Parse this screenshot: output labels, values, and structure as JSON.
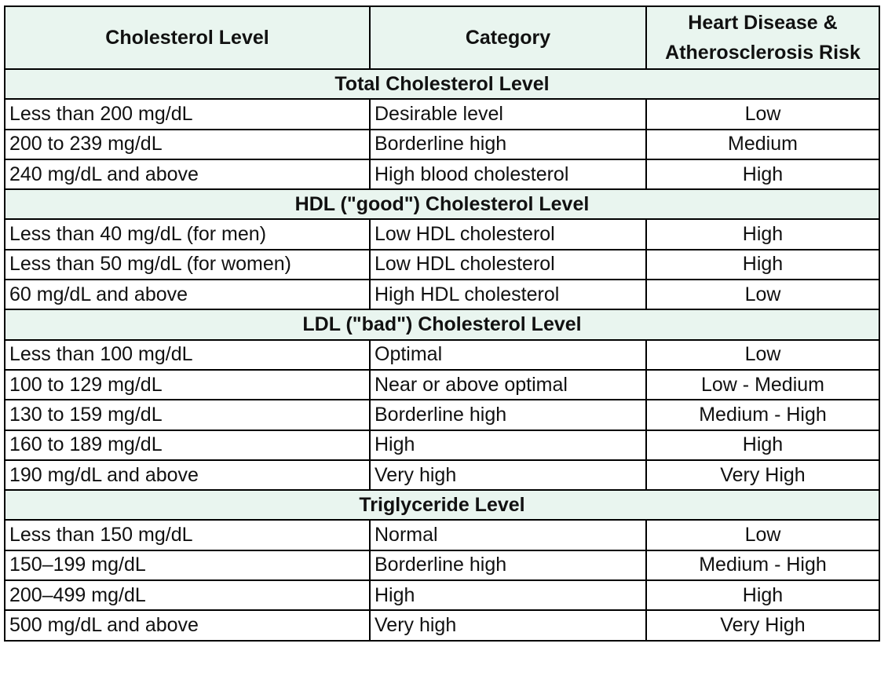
{
  "header": [
    "Cholesterol Level",
    "Category",
    "Heart Disease & Atherosclerosis Risk"
  ],
  "sections": [
    {
      "title": "Total Cholesterol Level",
      "rows": [
        [
          "Less than 200 mg/dL",
          "Desirable level",
          "Low"
        ],
        [
          "200 to 239 mg/dL",
          "Borderline high",
          "Medium"
        ],
        [
          "240 mg/dL and above",
          "High blood cholesterol",
          "High"
        ]
      ]
    },
    {
      "title": "HDL (\"good\") Cholesterol Level",
      "rows": [
        [
          "Less than 40 mg/dL (for men)",
          "Low HDL cholesterol",
          "High"
        ],
        [
          "Less than 50 mg/dL (for women)",
          "Low HDL cholesterol",
          "High"
        ],
        [
          "60 mg/dL and above",
          "High HDL cholesterol",
          "Low"
        ]
      ]
    },
    {
      "title": "LDL (\"bad\") Cholesterol Level",
      "rows": [
        [
          "Less than 100 mg/dL",
          "Optimal",
          "Low"
        ],
        [
          "100 to 129 mg/dL",
          "Near or above optimal",
          "Low - Medium"
        ],
        [
          "130 to 159 mg/dL",
          "Borderline high",
          "Medium - High"
        ],
        [
          "160 to 189 mg/dL",
          "High",
          "High"
        ],
        [
          "190 mg/dL and above",
          "Very high",
          "Very High"
        ]
      ]
    },
    {
      "title": "Triglyceride Level",
      "rows": [
        [
          "Less than 150 mg/dL",
          "Normal",
          "Low"
        ],
        [
          "150–199 mg/dL",
          "Borderline high",
          "Medium - High"
        ],
        [
          "200–499 mg/dL",
          "High",
          "High"
        ],
        [
          "500 mg/dL and above",
          "Very high",
          "Very High"
        ]
      ]
    }
  ]
}
